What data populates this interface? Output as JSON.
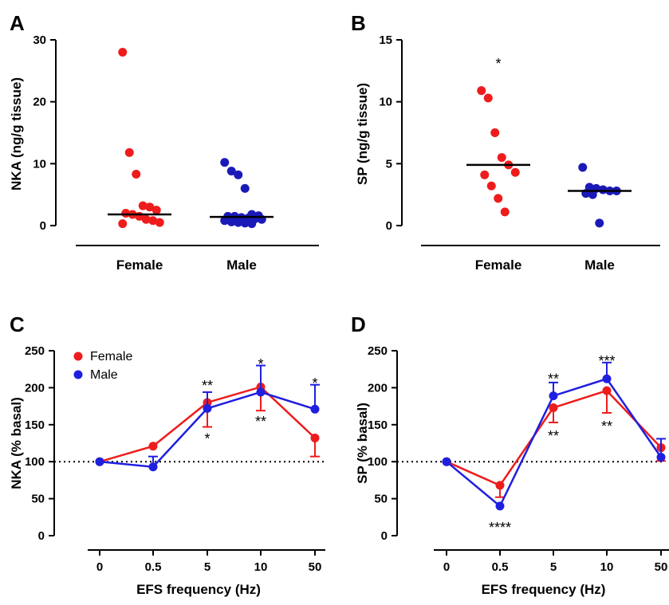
{
  "colors": {
    "female": "#ee1c1c",
    "male": "#1f1fe0",
    "male_dot": "#1a1ab8",
    "axis": "#000000"
  },
  "chart_data": [
    {
      "panel": "A",
      "type": "scatter",
      "ylabel": "NKA (ng/g tissue)",
      "ylim": [
        0,
        30
      ],
      "yticks": [
        "0",
        "10",
        "20",
        "30"
      ],
      "categories": [
        "Female",
        "Male"
      ],
      "series": [
        {
          "category": "Female",
          "median": 1.8,
          "points": [
            28,
            11.8,
            8.3,
            3.2,
            3.0,
            2.5,
            2.0,
            1.8,
            1.5,
            1.0,
            0.8,
            0.5,
            0.3
          ]
        },
        {
          "category": "Male",
          "median": 1.4,
          "points": [
            10.2,
            8.8,
            8.2,
            6.0,
            1.8,
            1.6,
            1.5,
            1.5,
            1.3,
            1.2,
            1.1,
            1.0,
            0.8,
            0.6,
            0.5,
            0.4,
            0.3
          ]
        }
      ]
    },
    {
      "panel": "B",
      "type": "scatter",
      "ylabel": "SP (ng/g tissue)",
      "ylim": [
        0,
        15
      ],
      "yticks": [
        "0",
        "5",
        "10",
        "15"
      ],
      "categories": [
        "Female",
        "Male"
      ],
      "annotations": [
        {
          "text": "*",
          "category": "Female",
          "y": 13.2
        }
      ],
      "series": [
        {
          "category": "Female",
          "median": 4.9,
          "points": [
            10.9,
            10.3,
            7.5,
            5.5,
            4.9,
            4.3,
            4.1,
            3.2,
            2.2,
            1.1
          ]
        },
        {
          "category": "Male",
          "median": 2.8,
          "points": [
            4.7,
            3.1,
            3.0,
            2.9,
            2.8,
            2.8,
            2.6,
            2.5,
            0.2
          ]
        }
      ]
    },
    {
      "panel": "C",
      "type": "line",
      "ylabel": "NKA (% basal)",
      "xlabel": "EFS frequency (Hz)",
      "ylim": [
        0,
        250
      ],
      "yticks": [
        "0",
        "50",
        "100",
        "150",
        "200",
        "250"
      ],
      "categories": [
        "0",
        "0.5",
        "5",
        "10",
        "50"
      ],
      "baseline": 100,
      "legend": {
        "position": "top-left"
      },
      "series": [
        {
          "name": "Female",
          "values": [
            100,
            121,
            180,
            201,
            132
          ],
          "err_up": [
            0,
            0,
            0,
            0,
            0
          ],
          "err_down": [
            0,
            0,
            33,
            32,
            25
          ]
        },
        {
          "name": "Male",
          "values": [
            100,
            93,
            172,
            194,
            171
          ],
          "err_up": [
            0,
            14,
            22,
            36,
            33
          ],
          "err_down": [
            0,
            0,
            0,
            0,
            0
          ]
        }
      ],
      "annotations": [
        {
          "text": "**",
          "x": 2,
          "y": 205
        },
        {
          "text": "*",
          "x": 2,
          "y": 133
        },
        {
          "text": "*",
          "x": 3,
          "y": 234
        },
        {
          "text": "**",
          "x": 3,
          "y": 156
        },
        {
          "text": "*",
          "x": 4,
          "y": 208
        }
      ]
    },
    {
      "panel": "D",
      "type": "line",
      "ylabel": "SP (% basal)",
      "xlabel": "EFS frequency (Hz)",
      "ylim": [
        0,
        250
      ],
      "yticks": [
        "0",
        "50",
        "100",
        "150",
        "200",
        "250"
      ],
      "categories": [
        "0",
        "0.5",
        "5",
        "10",
        "50"
      ],
      "baseline": 100,
      "series": [
        {
          "name": "Female",
          "values": [
            100,
            68,
            173,
            196,
            119
          ],
          "err_up": [
            0,
            0,
            0,
            0,
            0
          ],
          "err_down": [
            0,
            16,
            20,
            30,
            18
          ]
        },
        {
          "name": "Male",
          "values": [
            100,
            40,
            189,
            212,
            106
          ],
          "err_up": [
            0,
            0,
            18,
            22,
            25
          ],
          "err_down": [
            0,
            0,
            0,
            0,
            0
          ]
        }
      ],
      "annotations": [
        {
          "text": "**",
          "x": 2,
          "y": 214
        },
        {
          "text": "***",
          "x": 3,
          "y": 238
        },
        {
          "text": "****",
          "x": 1,
          "y": 13
        },
        {
          "text": "**",
          "x": 2,
          "y": 137
        },
        {
          "text": "**",
          "x": 3,
          "y": 150
        }
      ]
    }
  ]
}
